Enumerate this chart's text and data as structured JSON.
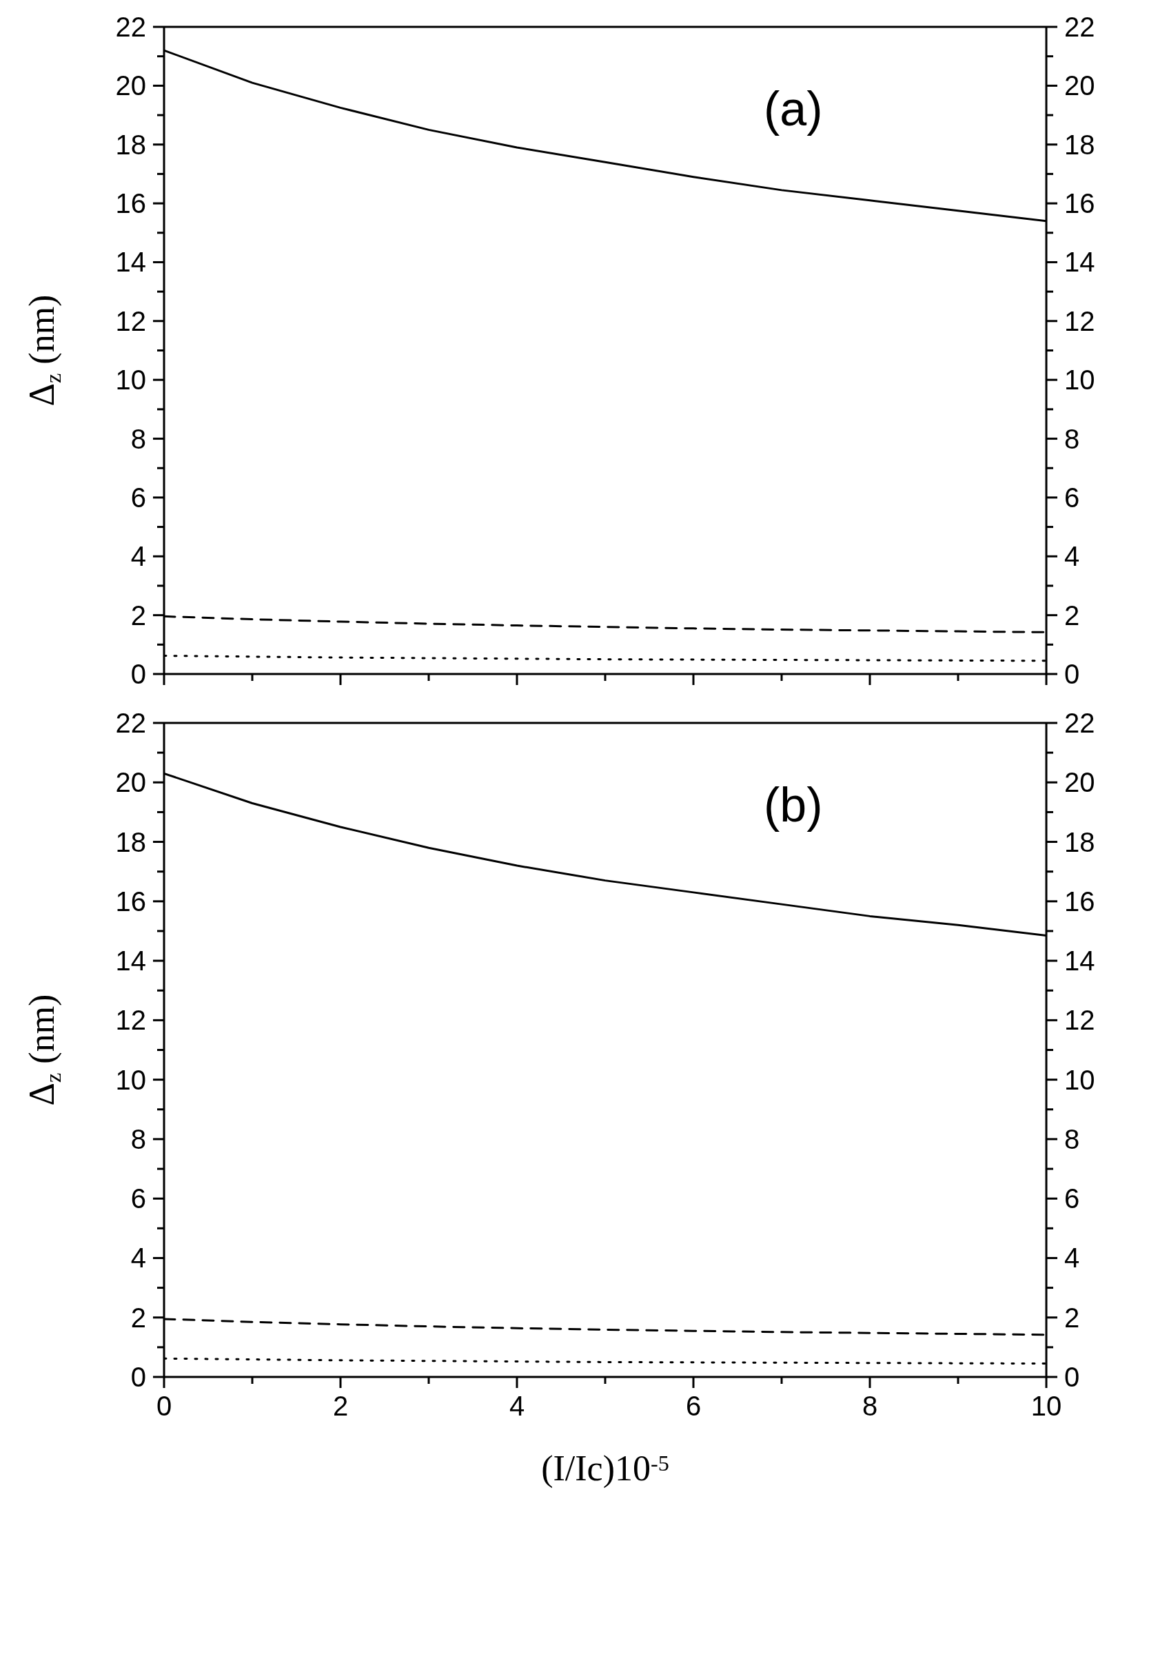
{
  "chart_data": [
    {
      "type": "line",
      "ylabel": "Δ$_{z}$ (nm)",
      "annotations": [
        "(a)"
      ],
      "x": [
        0,
        1,
        2,
        3,
        4,
        5,
        6,
        7,
        8,
        9,
        10
      ],
      "series": [
        {
          "color": "#000000",
          "line_style": "solid",
          "values": [
            21.2,
            20.1,
            19.25,
            18.5,
            17.9,
            17.4,
            16.9,
            16.45,
            16.1,
            15.75,
            15.4
          ]
        },
        {
          "color": "#000000",
          "line_style": "dashed",
          "values": [
            1.96,
            1.86,
            1.78,
            1.71,
            1.65,
            1.6,
            1.55,
            1.51,
            1.48,
            1.45,
            1.42
          ]
        },
        {
          "color": "#000000",
          "line_style": "dotted",
          "values": [
            0.62,
            0.59,
            0.56,
            0.54,
            0.52,
            0.5,
            0.49,
            0.48,
            0.47,
            0.46,
            0.45
          ]
        }
      ],
      "xlim": [
        0,
        10
      ],
      "xticks": [
        0,
        {
          "value": 1,
          "label": null
        },
        2,
        {
          "value": 3,
          "label": null
        },
        4,
        {
          "value": 5,
          "label": null
        },
        6,
        {
          "value": 7,
          "label": null
        },
        8,
        {
          "value": 9,
          "label": null
        },
        10
      ],
      "ylim": [
        0,
        22
      ],
      "yticks": [
        0,
        {
          "value": 1,
          "label": null
        },
        2,
        {
          "value": 3,
          "label": null
        },
        4,
        {
          "value": 5,
          "label": null
        },
        6,
        {
          "value": 7,
          "label": null
        },
        8,
        {
          "value": 9,
          "label": null
        },
        10,
        {
          "value": 11,
          "label": null
        },
        12,
        {
          "value": 13,
          "label": null
        },
        14,
        {
          "value": 15,
          "label": null
        },
        16,
        {
          "value": 17,
          "label": null
        },
        18,
        {
          "value": 19,
          "label": null
        },
        20,
        {
          "value": 21,
          "label": null
        },
        22
      ],
      "y2lim": [
        0,
        22
      ],
      "y2ticks": [
        0,
        {
          "value": 1,
          "label": null
        },
        2,
        {
          "value": 3,
          "label": null
        },
        4,
        {
          "value": 5,
          "label": null
        },
        6,
        {
          "value": 7,
          "label": null
        },
        8,
        {
          "value": 9,
          "label": null
        },
        10,
        {
          "value": 11,
          "label": null
        },
        12,
        {
          "value": 13,
          "label": null
        },
        14,
        {
          "value": 15,
          "label": null
        },
        16,
        {
          "value": 17,
          "label": null
        },
        18,
        {
          "value": 19,
          "label": null
        },
        20,
        {
          "value": 21,
          "label": null
        },
        22
      ],
      "tick_labels": "y",
      "grid": false,
      "legend": false,
      "marker": "none"
    },
    {
      "type": "line",
      "xlabel": "(I/Ic)10$^{-5}$",
      "ylabel": "Δ$_{z}$ (nm)",
      "annotations": [
        "(b)"
      ],
      "x": [
        0,
        1,
        2,
        3,
        4,
        5,
        6,
        7,
        8,
        9,
        10
      ],
      "series": [
        {
          "color": "#000000",
          "line_style": "solid",
          "values": [
            20.3,
            19.3,
            18.5,
            17.8,
            17.2,
            16.7,
            16.3,
            15.9,
            15.5,
            15.2,
            14.85
          ]
        },
        {
          "color": "#000000",
          "line_style": "dashed",
          "values": [
            1.95,
            1.85,
            1.77,
            1.7,
            1.64,
            1.59,
            1.55,
            1.51,
            1.48,
            1.45,
            1.42
          ]
        },
        {
          "color": "#000000",
          "line_style": "dotted",
          "values": [
            0.62,
            0.59,
            0.56,
            0.54,
            0.52,
            0.5,
            0.49,
            0.48,
            0.47,
            0.46,
            0.45
          ]
        }
      ],
      "xlim": [
        0,
        10
      ],
      "xticks": [
        0,
        {
          "value": 1,
          "label": null
        },
        2,
        {
          "value": 3,
          "label": null
        },
        4,
        {
          "value": 5,
          "label": null
        },
        6,
        {
          "value": 7,
          "label": null
        },
        8,
        {
          "value": 9,
          "label": null
        },
        10
      ],
      "ylim": [
        0,
        22
      ],
      "yticks": [
        0,
        {
          "value": 1,
          "label": null
        },
        2,
        {
          "value": 3,
          "label": null
        },
        4,
        {
          "value": 5,
          "label": null
        },
        6,
        {
          "value": 7,
          "label": null
        },
        8,
        {
          "value": 9,
          "label": null
        },
        10,
        {
          "value": 11,
          "label": null
        },
        12,
        {
          "value": 13,
          "label": null
        },
        14,
        {
          "value": 15,
          "label": null
        },
        16,
        {
          "value": 17,
          "label": null
        },
        18,
        {
          "value": 19,
          "label": null
        },
        20,
        {
          "value": 21,
          "label": null
        },
        22
      ],
      "y2lim": [
        0,
        22
      ],
      "y2ticks": [
        0,
        {
          "value": 1,
          "label": null
        },
        2,
        {
          "value": 3,
          "label": null
        },
        4,
        {
          "value": 5,
          "label": null
        },
        6,
        {
          "value": 7,
          "label": null
        },
        8,
        {
          "value": 9,
          "label": null
        },
        10,
        {
          "value": 11,
          "label": null
        },
        12,
        {
          "value": 13,
          "label": null
        },
        14,
        {
          "value": 15,
          "label": null
        },
        16,
        {
          "value": 17,
          "label": null
        },
        18,
        {
          "value": 19,
          "label": null
        },
        20,
        {
          "value": 21,
          "label": null
        },
        22
      ],
      "grid": false,
      "legend": false,
      "marker": "none"
    }
  ]
}
